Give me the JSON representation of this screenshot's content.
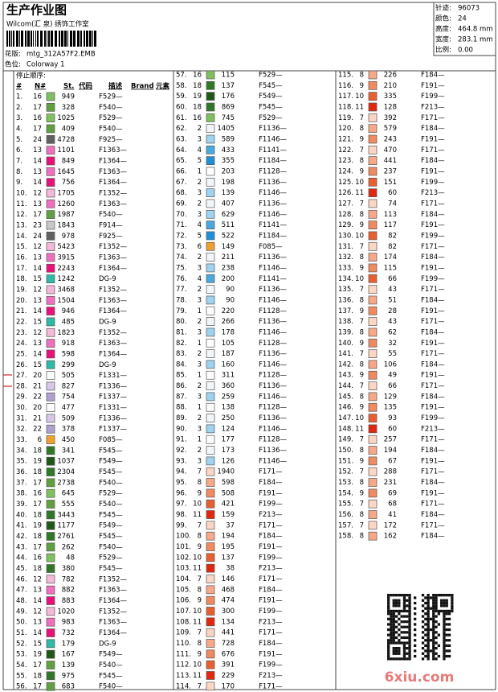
{
  "header": {
    "title": "生产作业图",
    "studio": "Wilcom(汇 泉) 绣饰工作室",
    "design_label": "花版:",
    "design": "mtg_312A57F2.EMB",
    "colorway_label": "色位:",
    "colorway": "Colorway 1"
  },
  "info": [
    [
      "针迹:",
      "96073"
    ],
    [
      "颜色:",
      "24"
    ],
    [
      "高度:",
      "464.8 mm"
    ],
    [
      "宽度:",
      "283.1 mm"
    ],
    [
      "比例:",
      "0.00"
    ]
  ],
  "table": {
    "stop_sequence_label": "停止顺序:",
    "columns": [
      "#",
      "N#",
      "St.",
      "代码",
      "描述",
      "Brand",
      "元素"
    ],
    "needle_colors": {
      "1": "#ffffff",
      "2": "#f2f6fa",
      "3": "#9fd3f0",
      "4": "#4aa8e0",
      "5": "#1f8fd8",
      "6": "#f0a030",
      "7": "#fbd6c4",
      "8": "#f6a888",
      "9": "#f08a60",
      "10": "#e86030",
      "11": "#e02810",
      "12": "#f4b8d8",
      "13": "#f070c0",
      "14": "#e8107a",
      "15": "#30b8a8",
      "16": "#80c060",
      "17": "#60a040",
      "18": "#307828",
      "19": "#205818",
      "20": "#ffffff",
      "21": "#d8c8e8",
      "22": "#b0a0d0",
      "23": "#c8c8c8",
      "24": "#606060"
    },
    "rows": [
      [
        "1.",
        16,
        949,
        "F529—"
      ],
      [
        "2.",
        17,
        328,
        "F540—"
      ],
      [
        "3.",
        16,
        1025,
        "F529—"
      ],
      [
        "4.",
        17,
        409,
        "F540—"
      ],
      [
        "5.",
        24,
        4728,
        "F925—"
      ],
      [
        "6.",
        13,
        1101,
        "F1363—"
      ],
      [
        "7.",
        14,
        849,
        "F1364—"
      ],
      [
        "8.",
        13,
        1645,
        "F1363—"
      ],
      [
        "9.",
        14,
        756,
        "F1364—"
      ],
      [
        "10.",
        12,
        1705,
        "F1352—"
      ],
      [
        "11.",
        13,
        1260,
        "F1363—"
      ],
      [
        "12.",
        17,
        1987,
        "F540—"
      ],
      [
        "13.",
        23,
        1843,
        "F914—"
      ],
      [
        "14.",
        24,
        978,
        "F925—"
      ],
      [
        "15.",
        12,
        5423,
        "F1352—"
      ],
      [
        "16.",
        13,
        3915,
        "F1363—"
      ],
      [
        "17.",
        14,
        2243,
        "F1364—"
      ],
      [
        "18.",
        15,
        1242,
        "DG-9"
      ],
      [
        "19.",
        12,
        3468,
        "F1352—"
      ],
      [
        "20.",
        13,
        1504,
        "F1363—"
      ],
      [
        "21.",
        14,
        946,
        "F1364—"
      ],
      [
        "22.",
        15,
        485,
        "DG-9"
      ],
      [
        "23.",
        12,
        1823,
        "F1352—"
      ],
      [
        "24.",
        13,
        918,
        "F1363—"
      ],
      [
        "25.",
        14,
        598,
        "F1364—"
      ],
      [
        "26.",
        15,
        299,
        "DG-9"
      ],
      [
        "27.",
        20,
        505,
        "F1331—"
      ],
      [
        "28.",
        21,
        827,
        "F1336—"
      ],
      [
        "29.",
        22,
        754,
        "F1337—"
      ],
      [
        "30.",
        20,
        477,
        "F1331—"
      ],
      [
        "31.",
        21,
        509,
        "F1336—"
      ],
      [
        "32.",
        22,
        378,
        "F1337—"
      ],
      [
        "33.",
        6,
        450,
        "F085—"
      ],
      [
        "34.",
        18,
        341,
        "F545—"
      ],
      [
        "35.",
        19,
        1037,
        "F549—"
      ],
      [
        "36.",
        18,
        2304,
        "F545—"
      ],
      [
        "37.",
        17,
        2738,
        "F540—"
      ],
      [
        "38.",
        16,
        645,
        "F529—"
      ],
      [
        "39.",
        17,
        555,
        "F540—"
      ],
      [
        "40.",
        18,
        3443,
        "F545—"
      ],
      [
        "41.",
        19,
        1177,
        "F549—"
      ],
      [
        "42.",
        18,
        2761,
        "F545—"
      ],
      [
        "43.",
        17,
        262,
        "F540—"
      ],
      [
        "44.",
        16,
        48,
        "F529—"
      ],
      [
        "45.",
        18,
        380,
        "F545—"
      ],
      [
        "46.",
        12,
        782,
        "F1352—"
      ],
      [
        "47.",
        13,
        882,
        "F1363—"
      ],
      [
        "48.",
        14,
        883,
        "F1364—"
      ],
      [
        "49.",
        12,
        1020,
        "F1352—"
      ],
      [
        "50.",
        13,
        983,
        "F1363—"
      ],
      [
        "51.",
        14,
        732,
        "F1364—"
      ],
      [
        "52.",
        15,
        179,
        "DG-9"
      ],
      [
        "53.",
        19,
        167,
        "F549—"
      ],
      [
        "54.",
        17,
        139,
        "F540—"
      ],
      [
        "55.",
        18,
        975,
        "F545—"
      ],
      [
        "56.",
        17,
        683,
        "F540—"
      ],
      [
        "57.",
        16,
        115,
        "F529—"
      ],
      [
        "58.",
        18,
        137,
        "F545—"
      ],
      [
        "59.",
        19,
        176,
        "F549—"
      ],
      [
        "60.",
        18,
        869,
        "F545—"
      ],
      [
        "61.",
        16,
        745,
        "F529—"
      ],
      [
        "62.",
        2,
        1405,
        "F1136—"
      ],
      [
        "63.",
        3,
        589,
        "F1146—"
      ],
      [
        "64.",
        4,
        433,
        "F1141—"
      ],
      [
        "65.",
        5,
        355,
        "F1184—"
      ],
      [
        "66.",
        1,
        203,
        "F1128—"
      ],
      [
        "67.",
        2,
        198,
        "F1136—"
      ],
      [
        "68.",
        3,
        139,
        "F1146—"
      ],
      [
        "69.",
        2,
        407,
        "F1136—"
      ],
      [
        "70.",
        3,
        629,
        "F1146—"
      ],
      [
        "71.",
        4,
        511,
        "F1141—"
      ],
      [
        "72.",
        5,
        522,
        "F1184—"
      ],
      [
        "73.",
        6,
        149,
        "F085—"
      ],
      [
        "74.",
        2,
        211,
        "F1136—"
      ],
      [
        "75.",
        3,
        238,
        "F1146—"
      ],
      [
        "76.",
        4,
        200,
        "F1141—"
      ],
      [
        "77.",
        2,
        90,
        "F1136—"
      ],
      [
        "78.",
        3,
        90,
        "F1146—"
      ],
      [
        "79.",
        1,
        220,
        "F1128—"
      ],
      [
        "80.",
        2,
        266,
        "F1136—"
      ],
      [
        "81.",
        3,
        178,
        "F1146—"
      ],
      [
        "82.",
        1,
        105,
        "F1128—"
      ],
      [
        "83.",
        2,
        187,
        "F1136—"
      ],
      [
        "84.",
        3,
        160,
        "F1146—"
      ],
      [
        "85.",
        1,
        311,
        "F1128—"
      ],
      [
        "86.",
        2,
        360,
        "F1136—"
      ],
      [
        "87.",
        3,
        259,
        "F1146—"
      ],
      [
        "88.",
        1,
        138,
        "F1128—"
      ],
      [
        "89.",
        2,
        250,
        "F1136—"
      ],
      [
        "90.",
        3,
        124,
        "F1146—"
      ],
      [
        "91.",
        1,
        177,
        "F1128—"
      ],
      [
        "92.",
        2,
        173,
        "F1136—"
      ],
      [
        "93.",
        3,
        126,
        "F1146—"
      ],
      [
        "94.",
        7,
        1940,
        "F171—"
      ],
      [
        "95.",
        8,
        598,
        "F184—"
      ],
      [
        "96.",
        9,
        508,
        "F191—"
      ],
      [
        "97.",
        10,
        421,
        "F199—"
      ],
      [
        "98.",
        11,
        159,
        "F213—"
      ],
      [
        "99.",
        7,
        37,
        "F171—"
      ],
      [
        "100.",
        8,
        194,
        "F184—"
      ],
      [
        "101.",
        9,
        195,
        "F191—"
      ],
      [
        "102.",
        10,
        137,
        "F199—"
      ],
      [
        "103.",
        11,
        38,
        "F213—"
      ],
      [
        "104.",
        7,
        146,
        "F171—"
      ],
      [
        "105.",
        8,
        468,
        "F184—"
      ],
      [
        "106.",
        9,
        474,
        "F191—"
      ],
      [
        "107.",
        10,
        300,
        "F199—"
      ],
      [
        "108.",
        11,
        134,
        "F213—"
      ],
      [
        "109.",
        7,
        441,
        "F171—"
      ],
      [
        "110.",
        8,
        728,
        "F184—"
      ],
      [
        "111.",
        9,
        676,
        "F191—"
      ],
      [
        "112.",
        10,
        391,
        "F199—"
      ],
      [
        "113.",
        11,
        229,
        "F213—"
      ],
      [
        "114.",
        7,
        170,
        "F171—"
      ],
      [
        "115.",
        8,
        226,
        "F184—"
      ],
      [
        "116.",
        9,
        210,
        "F191—"
      ],
      [
        "117.",
        10,
        335,
        "F199—"
      ],
      [
        "118.",
        11,
        128,
        "F213—"
      ],
      [
        "119.",
        7,
        392,
        "F171—"
      ],
      [
        "120.",
        8,
        579,
        "F184—"
      ],
      [
        "121.",
        9,
        243,
        "F191—"
      ],
      [
        "122.",
        7,
        470,
        "F171—"
      ],
      [
        "123.",
        8,
        441,
        "F184—"
      ],
      [
        "124.",
        9,
        237,
        "F191—"
      ],
      [
        "125.",
        10,
        151,
        "F199—"
      ],
      [
        "126.",
        11,
        60,
        "F213—"
      ],
      [
        "127.",
        7,
        74,
        "F171—"
      ],
      [
        "128.",
        8,
        113,
        "F184—"
      ],
      [
        "129.",
        9,
        117,
        "F191—"
      ],
      [
        "130.",
        10,
        82,
        "F199—"
      ],
      [
        "131.",
        7,
        82,
        "F171—"
      ],
      [
        "132.",
        8,
        174,
        "F184—"
      ],
      [
        "133.",
        9,
        115,
        "F191—"
      ],
      [
        "134.",
        10,
        66,
        "F199—"
      ],
      [
        "135.",
        7,
        43,
        "F171—"
      ],
      [
        "136.",
        8,
        51,
        "F184—"
      ],
      [
        "137.",
        9,
        28,
        "F191—"
      ],
      [
        "138.",
        7,
        43,
        "F171—"
      ],
      [
        "139.",
        8,
        62,
        "F184—"
      ],
      [
        "140.",
        9,
        32,
        "F191—"
      ],
      [
        "141.",
        7,
        55,
        "F171—"
      ],
      [
        "142.",
        8,
        106,
        "F184—"
      ],
      [
        "143.",
        9,
        49,
        "F191—"
      ],
      [
        "144.",
        7,
        66,
        "F171—"
      ],
      [
        "145.",
        8,
        129,
        "F184—"
      ],
      [
        "146.",
        9,
        135,
        "F191—"
      ],
      [
        "147.",
        10,
        93,
        "F199—"
      ],
      [
        "148.",
        11,
        60,
        "F213—"
      ],
      [
        "149.",
        7,
        257,
        "F171—"
      ],
      [
        "150.",
        8,
        194,
        "F184—"
      ],
      [
        "151.",
        9,
        67,
        "F191—"
      ],
      [
        "152.",
        7,
        288,
        "F171—"
      ],
      [
        "153.",
        8,
        231,
        "F184—"
      ],
      [
        "154.",
        9,
        69,
        "F191—"
      ],
      [
        "155.",
        7,
        68,
        "F171—"
      ],
      [
        "156.",
        8,
        41,
        "F184—"
      ],
      [
        "157.",
        7,
        172,
        "F171—"
      ],
      [
        "158.",
        8,
        162,
        "F184—"
      ]
    ]
  },
  "watermark": "6xiu.com"
}
